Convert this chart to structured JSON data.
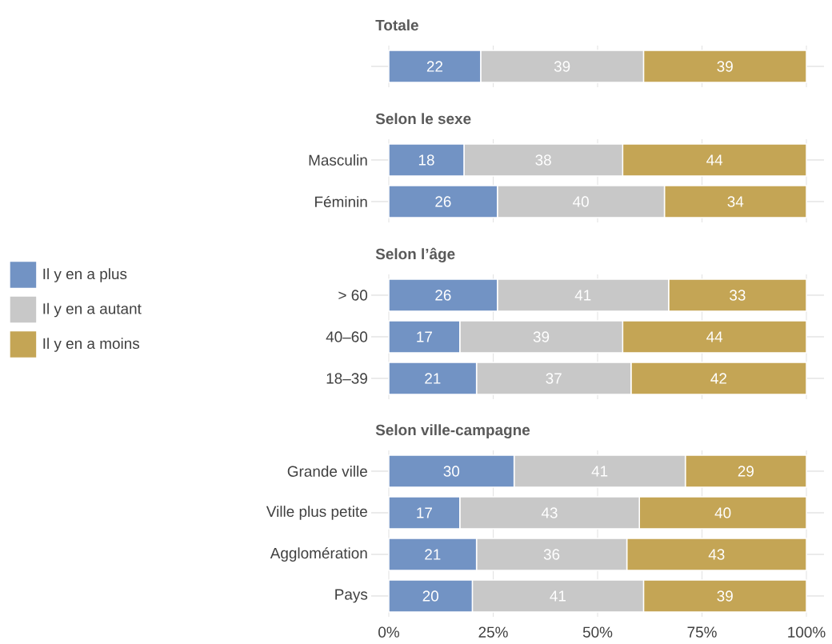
{
  "chart_data": [
    {
      "type": "bar",
      "orientation": "horizontal",
      "stacked": true,
      "title": "Totale",
      "categories": [
        null
      ],
      "data_labels": true,
      "grid": "x",
      "legend": "left",
      "tick_labels": "y",
      "xlim": [
        0,
        100
      ],
      "xticks": [
        0,
        25,
        50,
        75,
        100
      ],
      "series": [
        {
          "name": "Il y en a plus",
          "color": "#7293c4",
          "values": [
            22
          ]
        },
        {
          "name": "Il y en a autant",
          "color": "#c8c8c8",
          "values": [
            39
          ]
        },
        {
          "name": "Il y en a moins",
          "color": "#c4a555",
          "values": [
            39
          ]
        }
      ]
    },
    {
      "type": "bar",
      "orientation": "horizontal",
      "stacked": true,
      "title": "Selon le sexe",
      "categories": [
        "Masculin",
        "Féminin"
      ],
      "data_labels": true,
      "grid": "x",
      "tick_labels": "y",
      "xlim": [
        0,
        100
      ],
      "xticks": [
        0,
        25,
        50,
        75,
        100
      ],
      "series": [
        {
          "color": "#7293c4",
          "values": [
            18,
            26
          ]
        },
        {
          "color": "#c8c8c8",
          "values": [
            38,
            40
          ]
        },
        {
          "color": "#c4a555",
          "values": [
            44,
            34
          ]
        }
      ]
    },
    {
      "type": "bar",
      "orientation": "horizontal",
      "stacked": true,
      "title": "Selon l’âge",
      "categories": [
        "> 60",
        "40–60",
        "18–39"
      ],
      "data_labels": true,
      "grid": "x",
      "tick_labels": "y",
      "xlim": [
        0,
        100
      ],
      "xticks": [
        0,
        25,
        50,
        75,
        100
      ],
      "series": [
        {
          "color": "#7293c4",
          "values": [
            26,
            17,
            21
          ]
        },
        {
          "color": "#c8c8c8",
          "values": [
            41,
            39,
            37
          ]
        },
        {
          "color": "#c4a555",
          "values": [
            33,
            44,
            42
          ]
        }
      ]
    },
    {
      "type": "bar",
      "orientation": "horizontal",
      "stacked": true,
      "title": "Selon ville-campagne",
      "categories": [
        "Grande ville",
        "Ville plus petite",
        "Agglomération",
        "Pays"
      ],
      "data_labels": true,
      "grid": "x",
      "xlim": [
        0,
        100
      ],
      "xticks": [
        {
          "value": 0,
          "label": "0%"
        },
        {
          "value": 25,
          "label": "25%"
        },
        {
          "value": 50,
          "label": "50%"
        },
        {
          "value": 75,
          "label": "75%"
        },
        {
          "value": 100,
          "label": "100%"
        }
      ],
      "series": [
        {
          "color": "#7293c4",
          "values": [
            30,
            17,
            21,
            20
          ]
        },
        {
          "color": "#c8c8c8",
          "values": [
            41,
            43,
            36,
            41
          ]
        },
        {
          "color": "#c4a555",
          "values": [
            29,
            40,
            43,
            39
          ]
        }
      ]
    }
  ]
}
